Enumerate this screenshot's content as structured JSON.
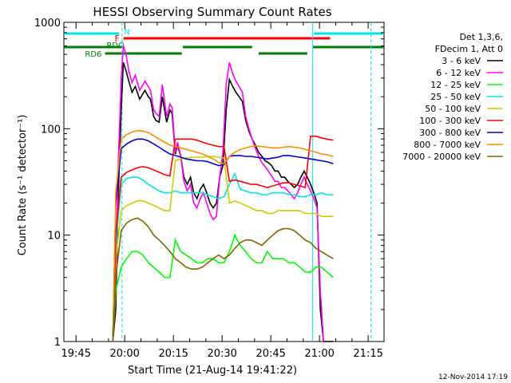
{
  "chart_data": {
    "type": "line",
    "title": "HESSI Observing Summary Count Rates",
    "xlabel": "Start Time (21-Aug-14 19:41:22)",
    "ylabel": "Count Rate (s⁻¹ detector⁻¹)",
    "yscale": "log",
    "ylim": [
      1,
      1000
    ],
    "xlim": [
      "19:41:22",
      "21:20:00"
    ],
    "x_tick_labels": [
      "19:45",
      "20:00",
      "20:15",
      "20:30",
      "20:45",
      "21:00",
      "21:15"
    ],
    "x_tick_minutes": [
      225,
      1125,
      2025,
      2925,
      3825,
      4725,
      5625
    ],
    "y_tick_labels": [
      "1",
      "10",
      "100",
      "1000"
    ],
    "y_tick_values": [
      1,
      10,
      100,
      1000
    ],
    "grid": false,
    "legend_position": "right",
    "legend_header": [
      "Det 1,3,6,",
      "FDecim 1, Att 0"
    ],
    "footer_date": "12-Nov-2014 17:19",
    "flags": {
      "top_bar_label_n": "N",
      "label_f": "F",
      "label_rdo": "RDO",
      "label_rd6": "RD6",
      "colors": {
        "n": "#00e5e5",
        "f": "#ff0000",
        "rd": "#007f00"
      }
    },
    "vertical_markers_sec": [
      {
        "t": 1075,
        "style": "dashed",
        "color": "#00e5e5"
      },
      {
        "t": 4600,
        "style": "solid",
        "color": "#00e5e5"
      },
      {
        "t": 5675,
        "style": "dashed",
        "color": "#00e5e5"
      }
    ],
    "data_window_sec": [
      905,
      4980
    ],
    "series": [
      {
        "name": "3 - 6 keV",
        "color": "#000000",
        "x": [
          905,
          960,
          1000,
          1060,
          1100,
          1150,
          1200,
          1260,
          1320,
          1400,
          1500,
          1560,
          1600,
          1660,
          1700,
          1760,
          1820,
          1900,
          1960,
          2000,
          2060,
          2100,
          2160,
          2220,
          2280,
          2340,
          2400,
          2460,
          2520,
          2580,
          2640,
          2700,
          2760,
          2820,
          2880,
          2940,
          3000,
          3060,
          3120,
          3180,
          3240,
          3300,
          3360,
          3420,
          3480,
          3540,
          3600,
          3660,
          3720,
          3780,
          3840,
          3900,
          3960,
          4020,
          4080,
          4140,
          4200,
          4260,
          4320,
          4380,
          4440,
          4500,
          4560,
          4620,
          4680,
          4740,
          4800,
          4860,
          4920,
          4980
        ],
        "y": [
          1,
          2,
          20,
          150,
          420,
          350,
          280,
          220,
          250,
          190,
          230,
          200,
          190,
          130,
          120,
          115,
          200,
          115,
          150,
          140,
          58,
          70,
          55,
          35,
          30,
          35,
          25,
          22,
          27,
          30,
          25,
          20,
          18,
          20,
          35,
          45,
          150,
          290,
          250,
          220,
          200,
          180,
          120,
          95,
          80,
          70,
          60,
          55,
          50,
          48,
          45,
          40,
          40,
          35,
          35,
          32,
          30,
          28,
          30,
          35,
          40,
          35,
          30,
          25,
          20,
          2,
          1,
          1,
          1,
          1
        ]
      },
      {
        "name": "6 - 12 keV",
        "color": "#ff00ff",
        "x": [
          905,
          960,
          1000,
          1060,
          1100,
          1150,
          1200,
          1260,
          1320,
          1400,
          1500,
          1560,
          1600,
          1660,
          1700,
          1760,
          1820,
          1900,
          1960,
          2000,
          2060,
          2100,
          2160,
          2220,
          2280,
          2340,
          2400,
          2460,
          2520,
          2580,
          2640,
          2700,
          2760,
          2820,
          2880,
          2940,
          3000,
          3060,
          3120,
          3180,
          3240,
          3300,
          3360,
          3420,
          3480,
          3540,
          3600,
          3660,
          3720,
          3780,
          3840,
          3900,
          3960,
          4020,
          4080,
          4140,
          4200,
          4260,
          4320,
          4380,
          4440,
          4500,
          4560,
          4620,
          4680,
          4740,
          4800
        ],
        "y": [
          1,
          3,
          40,
          300,
          600,
          500,
          350,
          270,
          320,
          230,
          280,
          250,
          230,
          150,
          140,
          130,
          260,
          130,
          170,
          160,
          60,
          75,
          55,
          32,
          26,
          30,
          20,
          18,
          22,
          25,
          20,
          16,
          14,
          15,
          35,
          60,
          260,
          420,
          330,
          280,
          250,
          220,
          130,
          100,
          80,
          65,
          55,
          48,
          44,
          40,
          36,
          32,
          32,
          28,
          28,
          26,
          24,
          22,
          25,
          30,
          35,
          30,
          26,
          22,
          18,
          3,
          1
        ]
      },
      {
        "name": "12 - 25 keV",
        "color": "#00ff00",
        "x": [
          905,
          960,
          1060,
          1160,
          1260,
          1360,
          1460,
          1560,
          1660,
          1760,
          1860,
          1960,
          2060,
          2160,
          2260,
          2360,
          2460,
          2560,
          2660,
          2760,
          2860,
          2960,
          3060,
          3160,
          3260,
          3360,
          3460,
          3560,
          3660,
          3760,
          3860,
          3960,
          4060,
          4160,
          4260,
          4360,
          4460,
          4560,
          4660,
          4760,
          4860,
          4980
        ],
        "y": [
          1,
          3,
          5,
          6,
          7,
          7,
          6.5,
          5.5,
          5,
          4.5,
          4,
          4,
          9,
          7,
          6.5,
          6,
          5.5,
          5.5,
          6,
          6,
          5.5,
          5.5,
          7,
          10,
          8,
          7,
          6,
          5.5,
          5.5,
          7,
          6,
          6,
          6,
          5.5,
          5.5,
          5,
          4.5,
          4.5,
          5,
          5,
          4.5,
          4
        ]
      },
      {
        "name": "25 - 50 keV",
        "color": "#00e5e5",
        "x": [
          905,
          960,
          1060,
          1160,
          1260,
          1360,
          1460,
          1560,
          1660,
          1760,
          1860,
          1960,
          2060,
          2160,
          2260,
          2360,
          2460,
          2560,
          2660,
          2760,
          2860,
          2960,
          3060,
          3160,
          3260,
          3360,
          3460,
          3560,
          3660,
          3760,
          3860,
          3960,
          4060,
          4160,
          4260,
          4360,
          4460,
          4560,
          4660,
          4760,
          4860,
          4980
        ],
        "y": [
          1,
          8,
          30,
          34,
          35,
          35,
          33,
          30,
          28,
          26,
          25,
          25,
          26,
          25,
          25,
          25,
          25,
          25,
          24,
          23,
          22,
          23,
          30,
          38,
          27,
          26,
          25,
          25,
          24,
          24,
          25,
          25,
          25,
          24,
          24,
          23,
          23,
          24,
          24,
          25,
          24,
          24
        ]
      },
      {
        "name": "50 - 100 keV",
        "color": "#cccc00",
        "x": [
          905,
          960,
          1060,
          1160,
          1260,
          1360,
          1460,
          1560,
          1660,
          1760,
          1860,
          1960,
          2060,
          2160,
          2260,
          2360,
          2460,
          2560,
          2660,
          2760,
          2860,
          2960,
          3060,
          3160,
          3260,
          3360,
          3460,
          3560,
          3660,
          3760,
          3860,
          3960,
          4060,
          4160,
          4260,
          4360,
          4460,
          4560,
          4660,
          4760,
          4860,
          4980
        ],
        "y": [
          1,
          6,
          17,
          19,
          20,
          21,
          21,
          20,
          19,
          18,
          17,
          17,
          50,
          52,
          53,
          54,
          54,
          54,
          55,
          55,
          54,
          53,
          20,
          21,
          20,
          19,
          18,
          17,
          17,
          16,
          16,
          17,
          17,
          17,
          17,
          17,
          16,
          16,
          16,
          15,
          15,
          15
        ]
      },
      {
        "name": "100 - 300 keV",
        "color": "#ff0000",
        "x": [
          905,
          960,
          1060,
          1160,
          1260,
          1360,
          1460,
          1560,
          1660,
          1760,
          1860,
          1960,
          2060,
          2160,
          2260,
          2360,
          2460,
          2560,
          2660,
          2760,
          2860,
          2960,
          3060,
          3160,
          3260,
          3360,
          3460,
          3560,
          3660,
          3760,
          3860,
          3960,
          4060,
          4160,
          4260,
          4360,
          4460,
          4560,
          4660,
          4760,
          4860,
          4980
        ],
        "y": [
          1,
          10,
          35,
          39,
          41,
          43,
          44,
          43,
          41,
          39,
          37,
          36,
          80,
          80,
          80,
          80,
          78,
          75,
          72,
          70,
          68,
          68,
          32,
          33,
          32,
          31,
          30,
          30,
          29,
          28,
          29,
          30,
          31,
          31,
          30,
          29,
          28,
          85,
          85,
          82,
          80,
          78
        ]
      },
      {
        "name": "300 - 800 keV",
        "color": "#0000cc",
        "x": [
          905,
          960,
          1060,
          1160,
          1260,
          1360,
          1460,
          1560,
          1660,
          1760,
          1860,
          1960,
          2060,
          2160,
          2260,
          2360,
          2460,
          2560,
          2660,
          2760,
          2860,
          2960,
          3060,
          3160,
          3260,
          3360,
          3460,
          3560,
          3660,
          3760,
          3860,
          3960,
          4060,
          4160,
          4260,
          4360,
          4460,
          4560,
          4660,
          4760,
          4860,
          4980
        ],
        "y": [
          1,
          20,
          65,
          72,
          77,
          80,
          80,
          77,
          72,
          67,
          62,
          58,
          56,
          54,
          52,
          51,
          50,
          50,
          49,
          47,
          45,
          46,
          55,
          56,
          56,
          55,
          55,
          54,
          53,
          52,
          53,
          54,
          56,
          56,
          55,
          54,
          53,
          52,
          51,
          50,
          49,
          47
        ]
      },
      {
        "name": "800 - 7000 keV",
        "color": "#ff8c00",
        "x": [
          905,
          960,
          1060,
          1160,
          1260,
          1360,
          1460,
          1560,
          1660,
          1760,
          1860,
          1960,
          2060,
          2160,
          2260,
          2360,
          2460,
          2560,
          2660,
          2760,
          2860,
          2960,
          3060,
          3160,
          3260,
          3360,
          3460,
          3560,
          3660,
          3760,
          3860,
          3960,
          4060,
          4160,
          4260,
          4360,
          4460,
          4560,
          4660,
          4760,
          4860,
          4980
        ],
        "y": [
          1,
          25,
          80,
          88,
          93,
          96,
          95,
          92,
          86,
          80,
          75,
          70,
          68,
          66,
          64,
          62,
          60,
          58,
          55,
          52,
          48,
          47,
          55,
          60,
          64,
          66,
          68,
          69,
          68,
          67,
          66,
          66,
          67,
          68,
          67,
          66,
          64,
          62,
          60,
          58,
          57,
          55
        ]
      },
      {
        "name": "7000 - 20000 keV",
        "color": "#806600",
        "x": [
          905,
          960,
          1060,
          1160,
          1260,
          1360,
          1460,
          1560,
          1660,
          1760,
          1860,
          1960,
          2060,
          2160,
          2260,
          2360,
          2460,
          2560,
          2660,
          2760,
          2860,
          2960,
          3060,
          3160,
          3260,
          3360,
          3460,
          3560,
          3660,
          3760,
          3860,
          3960,
          4060,
          4160,
          4260,
          4360,
          4460,
          4560,
          4660,
          4760,
          4860,
          4980
        ],
        "y": [
          1,
          4,
          11,
          13,
          14,
          14.5,
          13.5,
          12,
          10,
          9,
          8,
          7,
          6,
          5.5,
          5,
          4.8,
          4.8,
          5,
          5.5,
          6,
          6.5,
          6,
          6.5,
          7.5,
          8.5,
          9,
          9,
          8.5,
          8,
          9,
          10,
          11,
          11.5,
          11.5,
          11,
          10,
          9,
          8.5,
          7.5,
          7,
          6.5,
          6
        ]
      }
    ]
  }
}
